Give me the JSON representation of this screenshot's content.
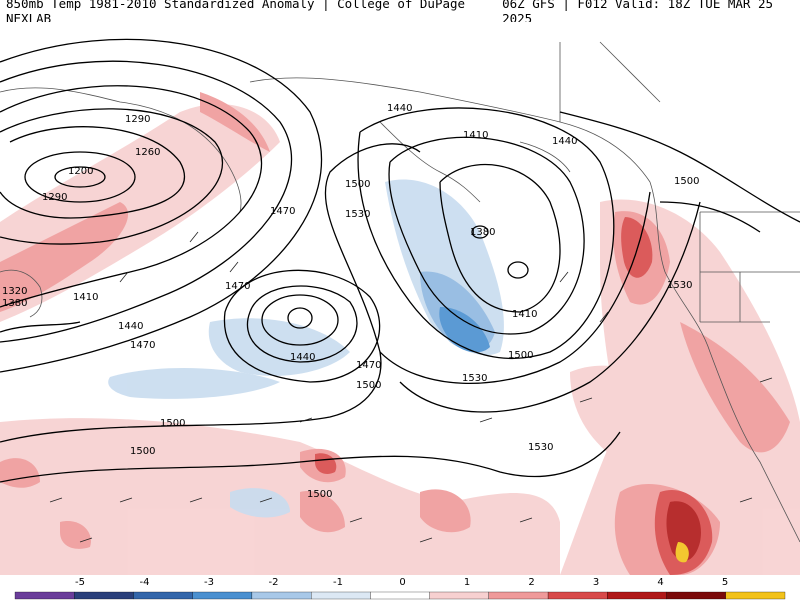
{
  "header": {
    "left_title": "850mb Temp 1981-2010 Standardized Anomaly | College of DuPage NEXLAB",
    "right_title": "06Z GFS | F012 Valid: 18Z TUE MAR 25 2025"
  },
  "colorbar": {
    "ticks": [
      "-5",
      "-4",
      "-3",
      "-2",
      "-1",
      "0",
      "1",
      "2",
      "3",
      "4",
      "5"
    ],
    "colors": [
      "#6a3d9a",
      "#2a3f7a",
      "#3366aa",
      "#4a90d0",
      "#a8c8e8",
      "#dce8f4",
      "#ffffff",
      "#f7d0d0",
      "#ef9a9a",
      "#d84a4a",
      "#b01818",
      "#7a0a0a",
      "#f2c21a"
    ]
  },
  "contour_labels": [
    "1290",
    "1260",
    "1200",
    "1290",
    "1320",
    "1380",
    "1410",
    "1440",
    "1470",
    "1470",
    "1500",
    "1530",
    "1440",
    "1410",
    "1380",
    "1410",
    "1500",
    "1440",
    "1470",
    "1500",
    "1530",
    "1530",
    "1500",
    "1470",
    "1500",
    "1500",
    "1530",
    "1500",
    "1440"
  ],
  "colors": {
    "warm_light": "#f7d0d0",
    "warm_mid": "#ef9a9a",
    "warm_strong": "#d84a4a",
    "warm_dark": "#b01818",
    "cool_light": "#c8dcef",
    "cool_mid": "#8fb8e0",
    "cool_strong": "#4a90d0",
    "contour": "#000000",
    "border": "#555555"
  }
}
